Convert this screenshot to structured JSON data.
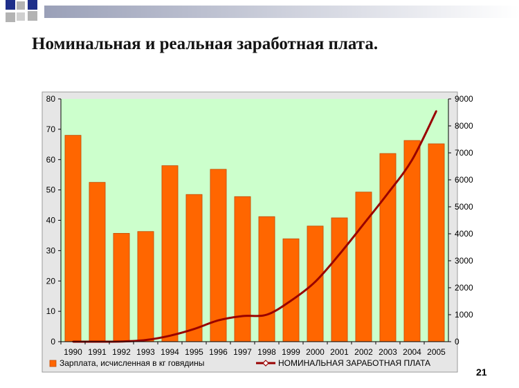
{
  "slide": {
    "title": "Номинальная и реальная заработная плата.",
    "page_number": "21"
  },
  "colors": {
    "plot_bg": "#ccffcc",
    "bar": "#ff6600",
    "bar_edge": "#c24a00",
    "line": "#990000",
    "deco_dark": "#1e2f8a",
    "deco_light": "#b3b3b3"
  },
  "chart_data": {
    "type": "bar",
    "title": "",
    "categories": [
      "1990",
      "1991",
      "1992",
      "1993",
      "1994",
      "1995",
      "1996",
      "1997",
      "1998",
      "1999",
      "2000",
      "2001",
      "2002",
      "2003",
      "2004",
      "2005"
    ],
    "series": [
      {
        "name": "Зарплата, исчисленная в кг говядины",
        "type": "bar",
        "axis": "left",
        "values": [
          68,
          52.5,
          35.7,
          36.3,
          58,
          48.5,
          56.8,
          47.8,
          41.2,
          33.9,
          38.1,
          40.8,
          49.3,
          62,
          66.3,
          65.2
        ]
      },
      {
        "name": "НОМИНАЛЬНАЯ ЗАРАБОТНАЯ ПЛАТА",
        "type": "line",
        "axis": "right",
        "values": [
          0,
          0,
          5,
          60,
          220,
          470,
          790,
          950,
          1000,
          1520,
          2220,
          3240,
          4360,
          5500,
          6740,
          8550
        ]
      }
    ],
    "left_axis": {
      "min": 0,
      "max": 80,
      "step": 10,
      "ticks": [
        "0",
        "10",
        "20",
        "30",
        "40",
        "50",
        "60",
        "70",
        "80"
      ]
    },
    "right_axis": {
      "min": 0,
      "max": 9000,
      "step": 1000,
      "ticks": [
        "0",
        "1000",
        "2000",
        "3000",
        "4000",
        "5000",
        "6000",
        "7000",
        "8000",
        "9000"
      ]
    },
    "xlabel": "",
    "ylabel": "",
    "grid": false,
    "legend_position": "bottom"
  }
}
